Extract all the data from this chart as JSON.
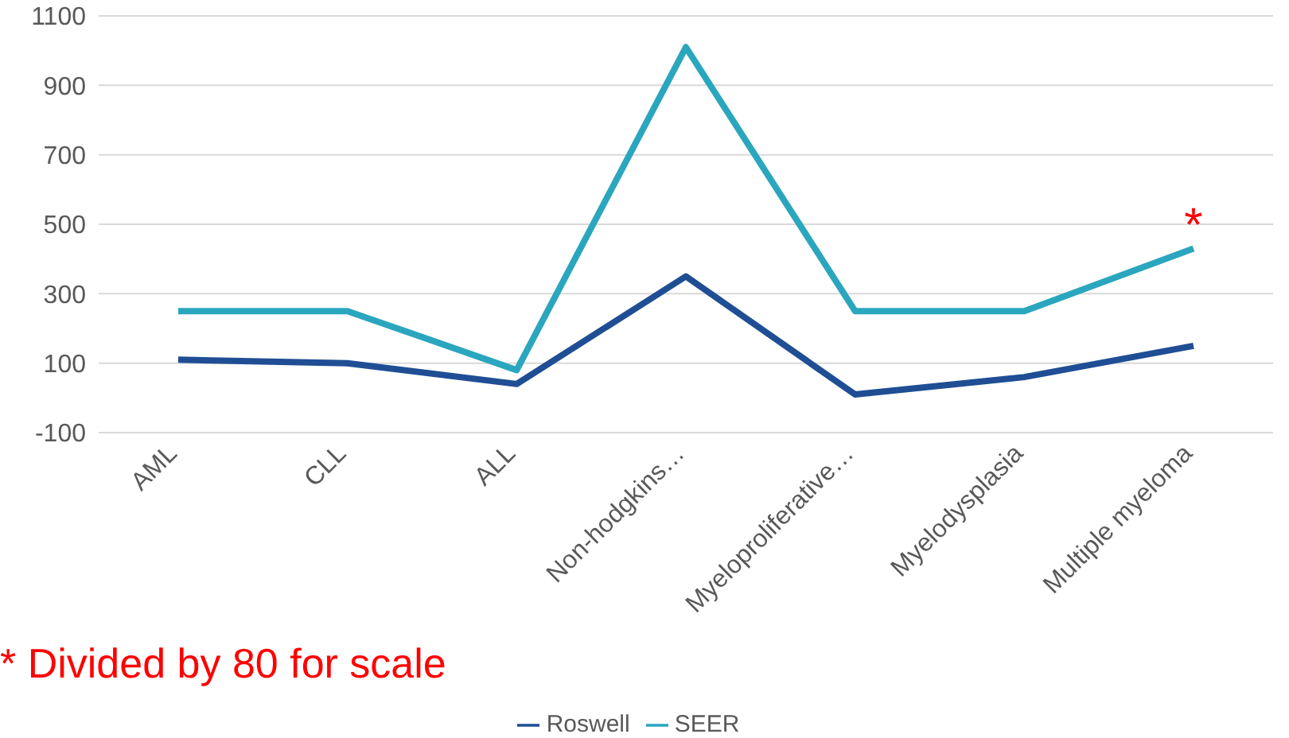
{
  "chart_data": {
    "type": "line",
    "categories": [
      "AML",
      "CLL",
      "ALL",
      "Non-hodgkins…",
      "Myeloproliferative…",
      "Myelodysplasia",
      "Multiple myeloma"
    ],
    "series": [
      {
        "name": "Roswell",
        "color": "#1f4e94",
        "values": [
          110,
          100,
          40,
          350,
          10,
          60,
          150
        ]
      },
      {
        "name": "SEER",
        "color": "#2aa6be",
        "values": [
          250,
          250,
          80,
          1010,
          250,
          250,
          430
        ]
      }
    ],
    "ylim": [
      -100,
      1100
    ],
    "yticks": [
      -100,
      100,
      300,
      500,
      700,
      900,
      1100
    ],
    "grid": "y",
    "legend": "bottom",
    "marker": "none",
    "line_style": "solid",
    "annotations": [
      {
        "text": "*",
        "x": "Multiple myeloma",
        "y": 430
      },
      "* Divided by 80 for scale"
    ]
  }
}
